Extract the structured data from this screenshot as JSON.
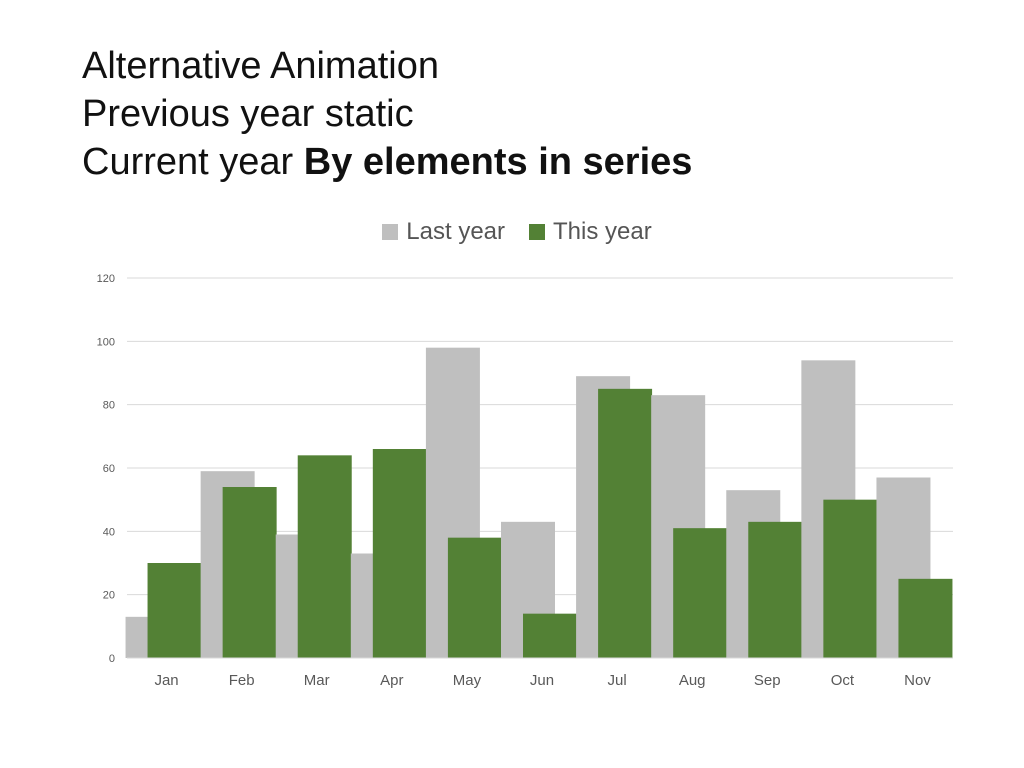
{
  "slide": {
    "title_line1": "Alternative Animation",
    "title_line2": "Previous year static",
    "title_line3_prefix": "Current year ",
    "title_line3_bold": "By elements in series"
  },
  "colors": {
    "last_year": "#bfbfbf",
    "this_year": "#538135",
    "grid": "#d9d9d9",
    "axis_text": "#595959"
  },
  "chart_data": {
    "type": "bar",
    "categories": [
      "Jan",
      "Feb",
      "Mar",
      "Apr",
      "May",
      "Jun",
      "Jul",
      "Aug",
      "Sep",
      "Oct",
      "Nov"
    ],
    "series": [
      {
        "name": "Last year",
        "values": [
          13,
          59,
          39,
          33,
          98,
          43,
          89,
          83,
          53,
          94,
          57
        ]
      },
      {
        "name": "This year",
        "values": [
          30,
          54,
          64,
          66,
          38,
          14,
          85,
          41,
          43,
          50,
          25
        ]
      }
    ],
    "yticks": [
      0,
      20,
      40,
      60,
      80,
      100,
      120
    ],
    "ylim": [
      0,
      120
    ],
    "grid": true,
    "legend": "top-center"
  }
}
